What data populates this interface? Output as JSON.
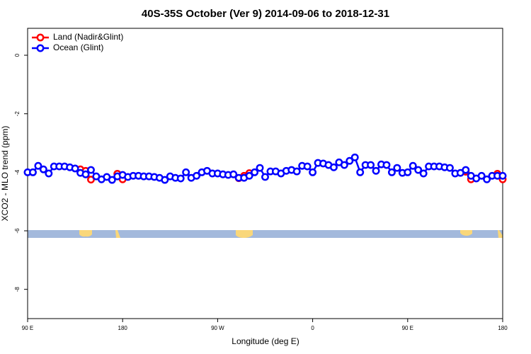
{
  "chart_data": {
    "type": "line",
    "title": "40S-35S October (Ver 9)   2014-09-06 to 2018-12-31",
    "x_label": "Longitude (deg E)",
    "y_label": "XCO2 - MLO trend (ppm)",
    "xlim": [
      90,
      540
    ],
    "ylim": [
      -9.0,
      0.92
    ],
    "xticks": [
      {
        "value": 90,
        "label": "90 E"
      },
      {
        "value": 180,
        "label": "180"
      },
      {
        "value": 270,
        "label": "90 W"
      },
      {
        "value": 360,
        "label": "0"
      },
      {
        "value": 450,
        "label": "90 E"
      },
      {
        "value": 540,
        "label": "180"
      }
    ],
    "yticks": [
      0,
      -2,
      -4,
      -6,
      -8
    ],
    "legend": "top-left",
    "series": [
      {
        "name": "Land (Nadir&Glint)",
        "color": "#ff0000",
        "x": [
          140,
          145,
          150,
          160,
          175,
          180,
          240,
          290,
          295,
          300,
          400,
          505,
          510,
          520,
          535,
          540
        ],
        "values": [
          -3.9,
          -3.95,
          -4.25,
          null,
          -4.05,
          -4.24,
          null,
          -4.2,
          -4.12,
          -4.03,
          null,
          -3.98,
          -4.24,
          null,
          -4.05,
          -4.24
        ]
      },
      {
        "name": "Ocean (Glint)",
        "color": "#0000ff",
        "x": [
          90,
          95,
          100,
          105,
          110,
          115,
          120,
          125,
          130,
          135,
          140,
          145,
          150,
          155,
          160,
          165,
          170,
          175,
          180,
          185,
          190,
          195,
          200,
          205,
          210,
          215,
          220,
          225,
          230,
          235,
          240,
          245,
          250,
          255,
          260,
          265,
          270,
          275,
          280,
          285,
          290,
          295,
          300,
          305,
          310,
          315,
          320,
          325,
          330,
          335,
          340,
          345,
          350,
          355,
          360,
          365,
          370,
          375,
          380,
          385,
          390,
          395,
          400,
          405,
          410,
          415,
          420,
          425,
          430,
          435,
          440,
          445,
          450,
          455,
          460,
          465,
          470,
          475,
          480,
          485,
          490,
          495,
          500,
          505,
          510,
          515,
          520,
          525,
          530,
          535,
          540
        ],
        "values": [
          -4.0,
          -4.0,
          -3.78,
          -3.9,
          -4.04,
          -3.8,
          -3.8,
          -3.8,
          -3.83,
          -3.87,
          -4.02,
          -4.07,
          -3.92,
          -4.14,
          -4.24,
          -4.16,
          -4.26,
          -4.14,
          -4.09,
          -4.16,
          -4.12,
          -4.12,
          -4.14,
          -4.14,
          -4.16,
          -4.19,
          -4.26,
          -4.14,
          -4.19,
          -4.21,
          -4.0,
          -4.19,
          -4.12,
          -4.0,
          -3.95,
          -4.04,
          -4.04,
          -4.07,
          -4.09,
          -4.07,
          -4.19,
          -4.19,
          -4.12,
          -4.0,
          -3.85,
          -4.16,
          -3.97,
          -3.97,
          -4.04,
          -3.95,
          -3.92,
          -3.97,
          -3.78,
          -3.8,
          -4.0,
          -3.68,
          -3.7,
          -3.75,
          -3.83,
          -3.66,
          -3.75,
          -3.61,
          -3.49,
          -4.0,
          -3.75,
          -3.75,
          -3.95,
          -3.73,
          -3.75,
          -4.0,
          -3.85,
          -4.02,
          -4.0,
          -3.78,
          -3.92,
          -4.04,
          -3.8,
          -3.8,
          -3.8,
          -3.83,
          -3.85,
          -4.04,
          -4.02,
          -3.92,
          -4.12,
          -4.21,
          -4.12,
          -4.24,
          -4.12,
          -4.12,
          -4.12
        ]
      }
    ]
  }
}
